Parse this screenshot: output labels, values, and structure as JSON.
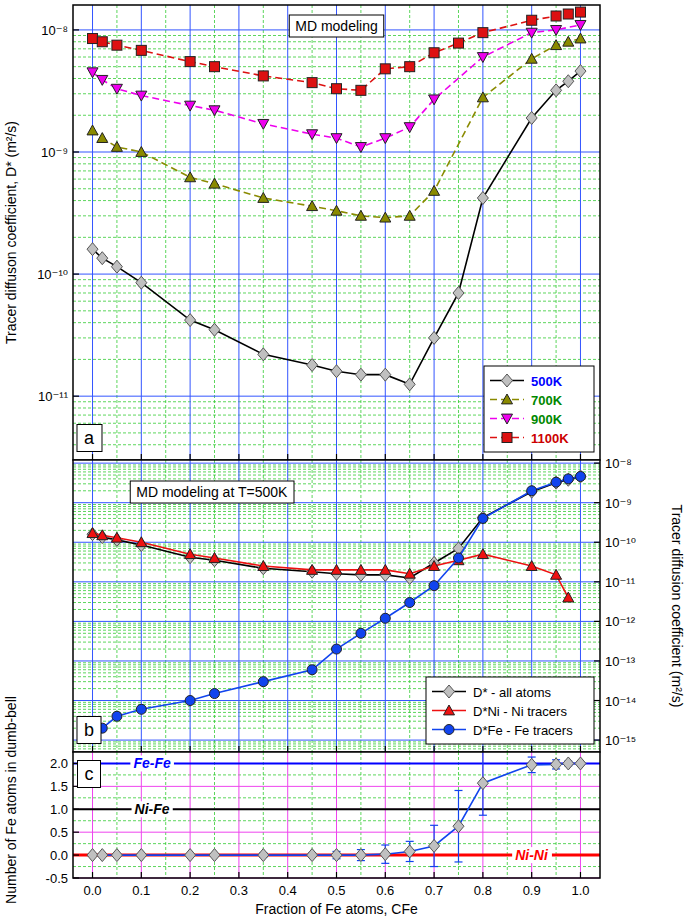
{
  "chart_data": [
    {
      "type": "line",
      "title": "MD modeling",
      "panel_label": "a",
      "y_label": "Tracer diffuson coefficient, D* (m²/s)",
      "log": "y",
      "grid": true,
      "legend": "lower right",
      "tick_labels": "y",
      "xlim": [
        -0.04,
        1.04
      ],
      "xticks": [
        {
          "value": 0,
          "label": "0.0"
        },
        0.1,
        0.2,
        0.3,
        0.4,
        0.5,
        0.6,
        0.7,
        0.8,
        0.9,
        {
          "value": 1,
          "label": "1.0"
        }
      ],
      "ylim": [
        3e-12,
        1.6e-08
      ],
      "yticks": [
        {
          "value": 1e-11,
          "label": "10⁻¹¹"
        },
        {
          "value": 1e-10,
          "label": "10⁻¹⁰"
        },
        {
          "value": 1e-09,
          "label": "10⁻⁹"
        },
        {
          "value": 1e-08,
          "label": "10⁻⁸"
        }
      ],
      "series": [
        {
          "name": "500K",
          "color": "#000000",
          "marker": "diamond",
          "line_style": "solid",
          "x": [
            0,
            0.02,
            0.05,
            0.1,
            0.2,
            0.25,
            0.35,
            0.45,
            0.5,
            0.55,
            0.6,
            0.65,
            0.7,
            0.75,
            0.8,
            0.9,
            0.95,
            0.975,
            1.0
          ],
          "values": [
            1.6e-10,
            1.35e-10,
            1.15e-10,
            8.5e-11,
            4.2e-11,
            3.5e-11,
            2.2e-11,
            1.8e-11,
            1.6e-11,
            1.5e-11,
            1.5e-11,
            1.25e-11,
            3e-11,
            7e-11,
            4.2e-10,
            1.9e-09,
            3.2e-09,
            3.8e-09,
            4.6e-09
          ]
        },
        {
          "name": "700K",
          "color": "#8a8a00",
          "marker": "triangle",
          "line_style": "dashed",
          "x": [
            0,
            0.02,
            0.05,
            0.1,
            0.2,
            0.25,
            0.35,
            0.45,
            0.5,
            0.55,
            0.6,
            0.65,
            0.7,
            0.8,
            0.9,
            0.95,
            0.975,
            1.0
          ],
          "values": [
            1.5e-09,
            1.3e-09,
            1.1e-09,
            1e-09,
            6.2e-10,
            5.5e-10,
            4.2e-10,
            3.6e-10,
            3.3e-10,
            3e-10,
            2.9e-10,
            3e-10,
            4.8e-10,
            2.8e-09,
            5.8e-09,
            7.5e-09,
            8e-09,
            8.5e-09
          ]
        },
        {
          "name": "900K",
          "color": "#ee00ee",
          "marker": "triangle-down",
          "line_style": "dashed",
          "x": [
            0,
            0.02,
            0.05,
            0.1,
            0.2,
            0.25,
            0.35,
            0.45,
            0.5,
            0.55,
            0.6,
            0.65,
            0.7,
            0.8,
            0.9,
            0.95,
            1.0
          ],
          "values": [
            4.5e-09,
            3.9e-09,
            3.3e-09,
            2.9e-09,
            2.4e-09,
            2.2e-09,
            1.7e-09,
            1.4e-09,
            1.3e-09,
            1.1e-09,
            1.3e-09,
            1.6e-09,
            2.7e-09,
            6e-09,
            9.5e-09,
            1e-08,
            1.1e-08
          ]
        },
        {
          "name": "1100K",
          "color": "#dd1111",
          "marker": "square",
          "line_style": "dashed",
          "x": [
            0,
            0.02,
            0.05,
            0.1,
            0.2,
            0.25,
            0.35,
            0.45,
            0.5,
            0.55,
            0.6,
            0.65,
            0.7,
            0.75,
            0.8,
            0.9,
            0.95,
            0.975,
            1.0
          ],
          "values": [
            8.5e-09,
            8e-09,
            7.5e-09,
            6.8e-09,
            5.5e-09,
            5e-09,
            4.2e-09,
            3.7e-09,
            3.3e-09,
            3.2e-09,
            4.8e-09,
            5e-09,
            6.5e-09,
            7.8e-09,
            9.5e-09,
            1.2e-08,
            1.3e-08,
            1.35e-08,
            1.4e-08
          ]
        }
      ]
    },
    {
      "type": "line",
      "title": "MD modeling at T=500K",
      "panel_label": "b",
      "y2_label": "Tracer diffusion coefficient (m²/s)",
      "log": "y",
      "grid": true,
      "legend": "lower right",
      "tick_labels": "y",
      "xlim": [
        -0.04,
        1.04
      ],
      "xticks": [
        {
          "value": 0,
          "label": "0.0"
        },
        0.1,
        0.2,
        0.3,
        0.4,
        0.5,
        0.6,
        0.7,
        0.8,
        0.9,
        {
          "value": 1,
          "label": "1.0"
        }
      ],
      "y2lim": [
        5e-16,
        1.2e-08
      ],
      "y2ticks": [
        {
          "value": 1e-15,
          "label": "10⁻¹⁵"
        },
        {
          "value": 1e-14,
          "label": "10⁻¹⁴"
        },
        {
          "value": 1e-13,
          "label": "10⁻¹³"
        },
        {
          "value": 1e-12,
          "label": "10⁻¹²"
        },
        {
          "value": 1e-11,
          "label": "10⁻¹¹"
        },
        {
          "value": 1e-10,
          "label": "10⁻¹⁰"
        },
        {
          "value": 1e-09,
          "label": "10⁻⁹"
        },
        {
          "value": 1e-08,
          "label": "10⁻⁸"
        }
      ],
      "series": [
        {
          "name": "D* - all atoms",
          "color": "#000000",
          "marker": "diamond",
          "line_style": "solid",
          "axis": "y2",
          "x": [
            0,
            0.02,
            0.05,
            0.1,
            0.2,
            0.25,
            0.35,
            0.45,
            0.5,
            0.55,
            0.6,
            0.65,
            0.7,
            0.75,
            0.8,
            0.9,
            0.95,
            0.975,
            1.0
          ],
          "values": [
            1.6e-10,
            1.35e-10,
            1.15e-10,
            8.5e-11,
            4.2e-11,
            3.5e-11,
            2.2e-11,
            1.8e-11,
            1.6e-11,
            1.5e-11,
            1.5e-11,
            1.25e-11,
            3e-11,
            7e-11,
            4.2e-10,
            1.9e-09,
            3.2e-09,
            3.8e-09,
            4.6e-09
          ]
        },
        {
          "name": "D*Ni - Ni tracers",
          "color": "#ee1111",
          "marker": "triangle",
          "line_style": "solid",
          "axis": "y2",
          "x": [
            0,
            0.02,
            0.05,
            0.1,
            0.2,
            0.25,
            0.35,
            0.45,
            0.5,
            0.55,
            0.6,
            0.65,
            0.7,
            0.75,
            0.8,
            0.9,
            0.95,
            0.975
          ],
          "values": [
            1.7e-10,
            1.5e-10,
            1.3e-10,
            1e-10,
            5e-11,
            4e-11,
            2.5e-11,
            2e-11,
            2e-11,
            2e-11,
            2e-11,
            1.6e-11,
            2.5e-11,
            3.5e-11,
            5e-11,
            2.5e-11,
            1.5e-11,
            4e-12
          ]
        },
        {
          "name": "D*Fe - Fe tracers",
          "color": "#1144ee",
          "marker": "circle",
          "line_style": "solid",
          "axis": "y2",
          "x": [
            0.02,
            0.05,
            0.1,
            0.2,
            0.25,
            0.35,
            0.45,
            0.5,
            0.55,
            0.6,
            0.65,
            0.7,
            0.75,
            0.8,
            0.9,
            0.95,
            0.975,
            1.0
          ],
          "values": [
            2e-15,
            4e-15,
            6e-15,
            1e-14,
            1.5e-14,
            3e-14,
            6e-14,
            2e-13,
            5e-13,
            1.2e-12,
            3e-12,
            8e-12,
            4e-11,
            4e-10,
            2e-09,
            3.3e-09,
            4e-09,
            4.6e-09
          ]
        }
      ]
    },
    {
      "type": "line",
      "panel_label": "c",
      "y_label": "Number of Fe atoms in dumb-bell",
      "x_label": "Fraction of Fe atoms, CFe",
      "grid": true,
      "xlim": [
        -0.04,
        1.04
      ],
      "xticks": [
        {
          "value": 0,
          "label": "0.0"
        },
        0.1,
        0.2,
        0.3,
        0.4,
        0.5,
        0.6,
        0.7,
        0.8,
        0.9,
        {
          "value": 1,
          "label": "1.0"
        }
      ],
      "ylim": [
        -0.5,
        2.25
      ],
      "yticks": [
        -0.5,
        {
          "value": 0,
          "label": "0.0"
        },
        0.5,
        {
          "value": 1,
          "label": "1.0"
        },
        1.5,
        {
          "value": 2,
          "label": "2.0"
        }
      ],
      "reference_lines": [
        {
          "value": 2,
          "label": "Fe-Fe",
          "color": "#0000ff"
        },
        {
          "value": 1,
          "label": "Ni-Fe",
          "color": "#000000"
        },
        {
          "value": 0,
          "label": "Ni-Ni",
          "color": "#ff0000"
        }
      ],
      "series": [
        {
          "color": "#1144ee",
          "marker": "diamond",
          "line_style": "solid",
          "x": [
            0,
            0.02,
            0.05,
            0.1,
            0.2,
            0.25,
            0.35,
            0.45,
            0.5,
            0.55,
            0.6,
            0.65,
            0.7,
            0.75,
            0.8,
            0.9,
            0.95,
            0.975,
            1.0
          ],
          "values": [
            0,
            0,
            0,
            0,
            0,
            0,
            0,
            0,
            0,
            0,
            0.02,
            0.08,
            0.2,
            0.63,
            1.57,
            1.97,
            1.98,
            2.0,
            2.0
          ],
          "errors": [
            0,
            0.03,
            0.03,
            0.03,
            0.03,
            0.03,
            0.05,
            0.05,
            0.08,
            0.12,
            0.2,
            0.22,
            0.45,
            0.78,
            0.7,
            0.17,
            0.1,
            0.05,
            0.03
          ]
        }
      ]
    }
  ]
}
